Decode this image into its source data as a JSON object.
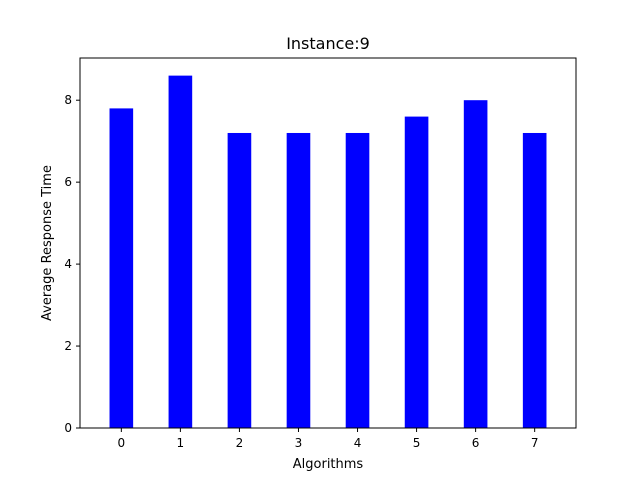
{
  "chart_data": {
    "type": "bar",
    "title": "Instance:9",
    "xlabel": "Algorithms",
    "ylabel": "Average Response Time",
    "categories": [
      "0",
      "1",
      "2",
      "3",
      "4",
      "5",
      "6",
      "7"
    ],
    "values": [
      7.8,
      8.6,
      7.2,
      7.2,
      7.2,
      7.6,
      8.0,
      7.2
    ],
    "ylim": [
      0,
      9.03
    ],
    "yticks": [
      0,
      2,
      4,
      6,
      8
    ],
    "bar_color": "#0000ff",
    "grid": false,
    "legend": "none"
  }
}
